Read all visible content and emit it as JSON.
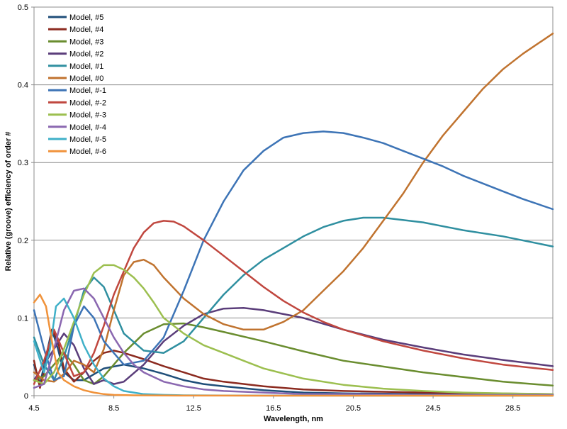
{
  "chart_data": {
    "type": "line",
    "title": "",
    "xlabel": "Wavelength, nm",
    "ylabel": "Relative (groove) efficiency of order #",
    "xlim": [
      4.5,
      30.5
    ],
    "ylim": [
      0,
      0.5
    ],
    "xticks": [
      4.5,
      8.5,
      12.5,
      16.5,
      20.5,
      24.5,
      28.5
    ],
    "xtick_labels": [
      "4.5",
      "8.5",
      "12.5",
      "16.5",
      "20.5",
      "24.5",
      "28.5"
    ],
    "yticks": [
      0,
      0.1,
      0.2,
      0.3,
      0.4,
      0.5
    ],
    "ytick_labels": [
      "0",
      "0.1",
      "0.2",
      "0.3",
      "0.4",
      "0.5"
    ],
    "grid": "horizontal",
    "legend_position": "top-left",
    "series": [
      {
        "name": "Model, #5",
        "color": "#1f4e79",
        "x": [
          4.5,
          4.8,
          5.1,
          5.4,
          5.7,
          6.0,
          6.5,
          7.0,
          8.0,
          9.0,
          10.0,
          11.0,
          12.0,
          13.0,
          14.0,
          16.0,
          18.0,
          20.0,
          24.0,
          30.5
        ],
        "y": [
          0.04,
          0.015,
          0.05,
          0.085,
          0.06,
          0.03,
          0.02,
          0.02,
          0.035,
          0.04,
          0.035,
          0.028,
          0.02,
          0.015,
          0.012,
          0.007,
          0.004,
          0.003,
          0.002,
          0.001
        ]
      },
      {
        "name": "Model, #4",
        "color": "#8b2a1f",
        "x": [
          4.5,
          4.8,
          5.1,
          5.4,
          5.7,
          6.0,
          6.5,
          7.0,
          7.5,
          8.0,
          8.5,
          9.0,
          10.0,
          11.0,
          12.0,
          13.0,
          14.0,
          16.0,
          18.0,
          20.0,
          24.0,
          30.5
        ],
        "y": [
          0.045,
          0.01,
          0.04,
          0.085,
          0.07,
          0.035,
          0.018,
          0.03,
          0.045,
          0.055,
          0.058,
          0.055,
          0.047,
          0.038,
          0.03,
          0.022,
          0.018,
          0.012,
          0.008,
          0.006,
          0.004,
          0.002
        ]
      },
      {
        "name": "Model, #3",
        "color": "#6a8d2f",
        "x": [
          4.5,
          5.0,
          5.5,
          6.0,
          6.5,
          7.0,
          7.5,
          8.0,
          8.5,
          9.0,
          10.0,
          11.0,
          12.0,
          13.0,
          14.0,
          16.0,
          18.0,
          20.0,
          24.0,
          28.0,
          30.5
        ],
        "y": [
          0.02,
          0.025,
          0.04,
          0.055,
          0.04,
          0.02,
          0.015,
          0.025,
          0.04,
          0.055,
          0.08,
          0.092,
          0.093,
          0.088,
          0.082,
          0.07,
          0.057,
          0.045,
          0.03,
          0.018,
          0.013
        ]
      },
      {
        "name": "Model, #2",
        "color": "#5a3d7a",
        "x": [
          4.5,
          5.0,
          5.5,
          6.0,
          6.5,
          7.0,
          7.5,
          8.0,
          8.5,
          9.0,
          10.0,
          11.0,
          12.0,
          13.0,
          14.0,
          15.0,
          16.0,
          18.0,
          20.0,
          22.0,
          24.0,
          26.0,
          28.0,
          30.5
        ],
        "y": [
          0.02,
          0.04,
          0.06,
          0.08,
          0.065,
          0.035,
          0.015,
          0.02,
          0.015,
          0.018,
          0.04,
          0.07,
          0.09,
          0.105,
          0.112,
          0.113,
          0.11,
          0.1,
          0.085,
          0.072,
          0.062,
          0.053,
          0.046,
          0.038
        ]
      },
      {
        "name": "Model, #1",
        "color": "#2f8fa0",
        "x": [
          4.5,
          5.0,
          5.5,
          6.0,
          6.5,
          7.0,
          7.5,
          8.0,
          8.5,
          9.0,
          10.0,
          11.0,
          12.0,
          13.0,
          14.0,
          15.0,
          16.0,
          17.0,
          18.0,
          19.0,
          20.0,
          21.0,
          22.0,
          24.0,
          26.0,
          28.0,
          30.5
        ],
        "y": [
          0.075,
          0.04,
          0.02,
          0.05,
          0.09,
          0.135,
          0.152,
          0.14,
          0.11,
          0.08,
          0.058,
          0.055,
          0.07,
          0.1,
          0.13,
          0.155,
          0.175,
          0.19,
          0.205,
          0.217,
          0.225,
          0.229,
          0.229,
          0.223,
          0.213,
          0.205,
          0.192
        ]
      },
      {
        "name": "Model, #0",
        "color": "#c0732f",
        "x": [
          4.5,
          5.0,
          5.5,
          6.0,
          6.5,
          7.0,
          7.5,
          8.0,
          8.5,
          9.0,
          9.5,
          10.0,
          10.5,
          11.0,
          12.0,
          13.0,
          14.0,
          15.0,
          16.0,
          17.0,
          18.0,
          19.0,
          20.0,
          21.0,
          22.0,
          23.0,
          24.0,
          25.0,
          26.0,
          27.0,
          28.0,
          29.0,
          30.5
        ],
        "y": [
          0.03,
          0.02,
          0.018,
          0.028,
          0.045,
          0.04,
          0.03,
          0.06,
          0.11,
          0.155,
          0.172,
          0.175,
          0.168,
          0.152,
          0.125,
          0.105,
          0.092,
          0.085,
          0.085,
          0.095,
          0.11,
          0.135,
          0.16,
          0.19,
          0.225,
          0.26,
          0.3,
          0.335,
          0.365,
          0.395,
          0.42,
          0.44,
          0.466
        ]
      },
      {
        "name": "Model, #-1",
        "color": "#3d74b6",
        "x": [
          4.5,
          5.0,
          5.5,
          6.0,
          6.5,
          7.0,
          7.5,
          8.0,
          9.0,
          10.0,
          11.0,
          12.0,
          13.0,
          14.0,
          15.0,
          16.0,
          17.0,
          18.0,
          19.0,
          20.0,
          21.0,
          22.0,
          23.0,
          24.0,
          25.0,
          26.0,
          27.0,
          28.0,
          29.0,
          30.5
        ],
        "y": [
          0.11,
          0.06,
          0.02,
          0.025,
          0.09,
          0.115,
          0.1,
          0.07,
          0.04,
          0.045,
          0.075,
          0.135,
          0.2,
          0.25,
          0.29,
          0.315,
          0.332,
          0.338,
          0.34,
          0.338,
          0.332,
          0.325,
          0.315,
          0.305,
          0.295,
          0.283,
          0.273,
          0.263,
          0.253,
          0.24
        ]
      },
      {
        "name": "Model, #-2",
        "color": "#c0473f",
        "x": [
          4.5,
          5.0,
          5.5,
          6.0,
          6.5,
          7.0,
          7.5,
          8.0,
          8.5,
          9.0,
          9.5,
          10.0,
          10.5,
          11.0,
          11.5,
          12.0,
          13.0,
          14.0,
          15.0,
          16.0,
          17.0,
          18.0,
          19.0,
          20.0,
          22.0,
          24.0,
          26.0,
          28.0,
          30.5
        ],
        "y": [
          0.015,
          0.045,
          0.085,
          0.055,
          0.025,
          0.03,
          0.055,
          0.09,
          0.13,
          0.16,
          0.19,
          0.21,
          0.222,
          0.225,
          0.224,
          0.218,
          0.2,
          0.18,
          0.16,
          0.14,
          0.122,
          0.107,
          0.095,
          0.085,
          0.07,
          0.058,
          0.048,
          0.04,
          0.033
        ]
      },
      {
        "name": "Model, #-3",
        "color": "#9cbf4f",
        "x": [
          4.5,
          5.0,
          5.5,
          6.0,
          6.5,
          7.0,
          7.5,
          8.0,
          8.5,
          9.0,
          9.5,
          10.0,
          10.5,
          11.0,
          12.0,
          13.0,
          14.0,
          15.0,
          16.0,
          18.0,
          20.0,
          22.0,
          24.0,
          26.0,
          28.0,
          30.5
        ],
        "y": [
          0.02,
          0.015,
          0.03,
          0.06,
          0.095,
          0.13,
          0.158,
          0.168,
          0.168,
          0.162,
          0.152,
          0.138,
          0.12,
          0.1,
          0.08,
          0.065,
          0.055,
          0.045,
          0.035,
          0.022,
          0.014,
          0.009,
          0.006,
          0.004,
          0.003,
          0.002
        ]
      },
      {
        "name": "Model, #-4",
        "color": "#8a67b0",
        "x": [
          4.5,
          5.0,
          5.5,
          6.0,
          6.5,
          7.0,
          7.5,
          8.0,
          8.5,
          9.0,
          9.5,
          10.0,
          11.0,
          12.0,
          13.0,
          14.0,
          16.0,
          18.0,
          20.0,
          24.0,
          30.5
        ],
        "y": [
          0.01,
          0.015,
          0.06,
          0.11,
          0.135,
          0.138,
          0.125,
          0.1,
          0.075,
          0.055,
          0.04,
          0.03,
          0.018,
          0.012,
          0.008,
          0.006,
          0.004,
          0.002,
          0.002,
          0.001,
          0.001
        ]
      },
      {
        "name": "Model, #-5",
        "color": "#3fb0c8",
        "x": [
          4.5,
          5.0,
          5.3,
          5.6,
          6.0,
          6.5,
          7.0,
          7.5,
          8.0,
          8.5,
          9.0,
          9.5,
          10.0,
          11.0,
          12.0,
          14.0,
          18.0,
          24.0,
          30.5
        ],
        "y": [
          0.07,
          0.03,
          0.06,
          0.115,
          0.125,
          0.1,
          0.065,
          0.04,
          0.022,
          0.012,
          0.006,
          0.004,
          0.002,
          0.001,
          0.0005,
          0.0002,
          0.0001,
          0,
          0
        ]
      },
      {
        "name": "Model, #-6",
        "color": "#f0923a",
        "x": [
          4.5,
          4.8,
          5.1,
          5.4,
          5.7,
          6.0,
          6.5,
          7.0,
          7.5,
          8.0,
          8.5,
          9.5,
          11.0,
          14.0,
          20.0,
          30.5
        ],
        "y": [
          0.12,
          0.13,
          0.115,
          0.07,
          0.03,
          0.02,
          0.012,
          0.007,
          0.004,
          0.002,
          0.001,
          0.0005,
          0.0002,
          0.0001,
          0,
          0
        ]
      }
    ]
  }
}
